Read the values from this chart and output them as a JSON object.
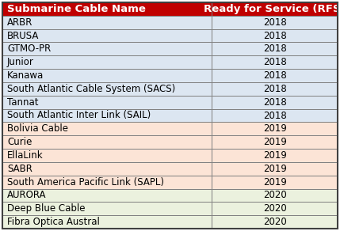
{
  "header": [
    "Submarine Cable Name",
    "Ready for Service (RFS)"
  ],
  "header_bg": "#c00000",
  "header_text_color": "#ffffff",
  "rows": [
    [
      "ARBR",
      "2018"
    ],
    [
      "BRUSA",
      "2018"
    ],
    [
      "GTMO-PR",
      "2018"
    ],
    [
      "Junior",
      "2018"
    ],
    [
      "Kanawa",
      "2018"
    ],
    [
      "South Atlantic Cable System (SACS)",
      "2018"
    ],
    [
      "Tannat",
      "2018"
    ],
    [
      "South Atlantic Inter Link (SAIL)",
      "2018"
    ],
    [
      "Bolivia Cable",
      "2019"
    ],
    [
      "Curie",
      "2019"
    ],
    [
      "EllaLink",
      "2019"
    ],
    [
      "SABR",
      "2019"
    ],
    [
      "South America Pacific Link (SAPL)",
      "2019"
    ],
    [
      "AURORA",
      "2020"
    ],
    [
      "Deep Blue Cable",
      "2020"
    ],
    [
      "Fibra Optica Austral",
      "2020"
    ]
  ],
  "row_colors": {
    "2018": "#dce6f1",
    "2019": "#fce4d6",
    "2020": "#ebf1de"
  },
  "border_color": "#808080",
  "text_color": "#000000",
  "font_size": 8.5,
  "header_font_size": 9.5,
  "col_split": 0.625,
  "figsize": [
    4.29,
    2.92
  ],
  "dpi": 100,
  "outer_border_color": "#404040",
  "outer_border_lw": 1.5
}
